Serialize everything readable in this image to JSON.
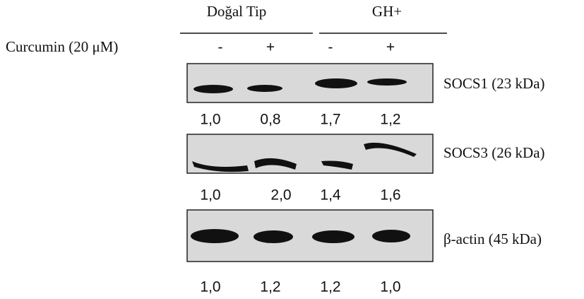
{
  "header": {
    "groups": [
      "Doğal Tip",
      "GH+"
    ],
    "treatment_label": "Curcumin (20 μM)",
    "treatments": [
      "-",
      "+",
      "-",
      "+"
    ]
  },
  "blots": [
    {
      "label": "SOCS1 (23 kDa)",
      "quantification": [
        "1,0",
        "0,8",
        "1,7",
        "1,2"
      ]
    },
    {
      "label": "SOCS3 (26 kDa)",
      "quantification": [
        "1,0",
        "2,0",
        "1,4",
        "1,6"
      ]
    },
    {
      "label": "β-actin (45 kDa)",
      "quantification": [
        "1,0",
        "1,2",
        "1,2",
        "1,0"
      ]
    }
  ]
}
